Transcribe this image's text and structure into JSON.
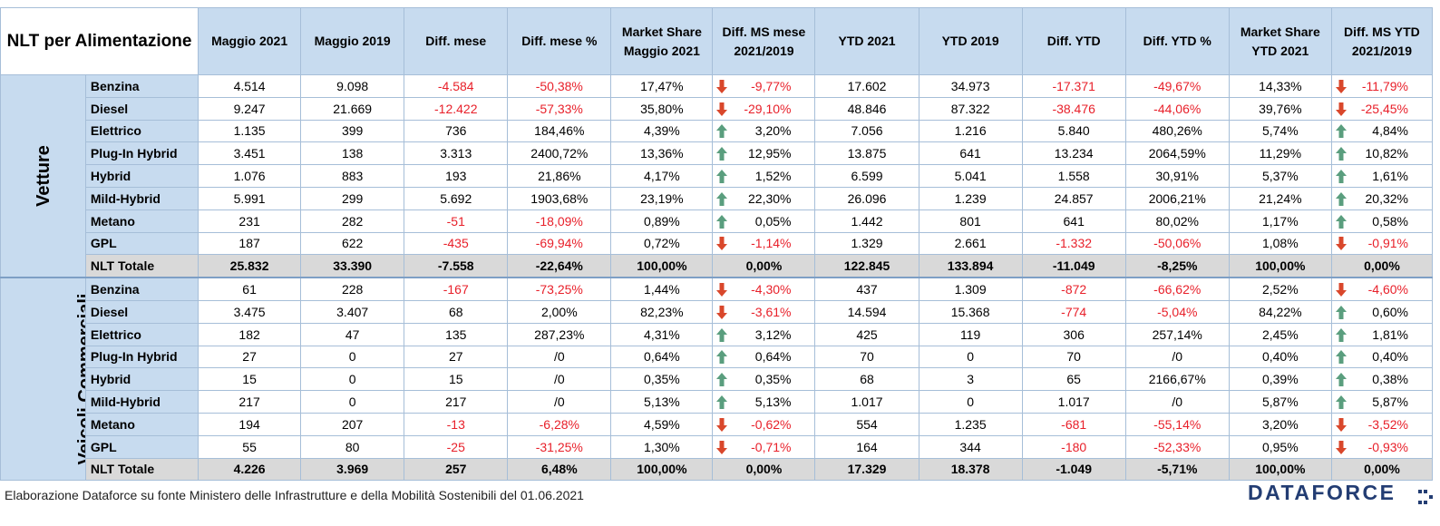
{
  "corner_title": "NLT per Alimentazione",
  "columns": [
    "Maggio 2021",
    "Maggio 2019",
    "Diff. mese",
    "Diff. mese %",
    "Market Share Maggio 2021",
    "Diff. MS mese 2021/2019",
    "YTD 2021",
    "YTD 2019",
    "Diff. YTD",
    "Diff. YTD %",
    "Market Share YTD 2021",
    "Diff. MS YTD 2021/2019"
  ],
  "colors": {
    "header_bg": "#c7dbef",
    "negative_text": "#e8202a",
    "up_arrow": "#5a9e7e",
    "down_arrow": "#d9472b",
    "total_row_bg": "#d9d9d9",
    "logo": "#233d73"
  },
  "groups": [
    {
      "name": "Vetture",
      "rows": [
        {
          "label": "Benzina",
          "c1": "4.514",
          "c2": "9.098",
          "c3": "-4.584",
          "c4": "-50,38%",
          "c5": "17,47%",
          "c6": "-9,77%",
          "c6_dir": "down",
          "c7": "17.602",
          "c8": "34.973",
          "c9": "-17.371",
          "c10": "-49,67%",
          "c11": "14,33%",
          "c12": "-11,79%",
          "c12_dir": "down"
        },
        {
          "label": "Diesel",
          "c1": "9.247",
          "c2": "21.669",
          "c3": "-12.422",
          "c4": "-57,33%",
          "c5": "35,80%",
          "c6": "-29,10%",
          "c6_dir": "down",
          "c7": "48.846",
          "c8": "87.322",
          "c9": "-38.476",
          "c10": "-44,06%",
          "c11": "39,76%",
          "c12": "-25,45%",
          "c12_dir": "down"
        },
        {
          "label": "Elettrico",
          "c1": "1.135",
          "c2": "399",
          "c3": "736",
          "c4": "184,46%",
          "c5": "4,39%",
          "c6": "3,20%",
          "c6_dir": "up",
          "c7": "7.056",
          "c8": "1.216",
          "c9": "5.840",
          "c10": "480,26%",
          "c11": "5,74%",
          "c12": "4,84%",
          "c12_dir": "up"
        },
        {
          "label": "Plug-In Hybrid",
          "c1": "3.451",
          "c2": "138",
          "c3": "3.313",
          "c4": "2400,72%",
          "c5": "13,36%",
          "c6": "12,95%",
          "c6_dir": "up",
          "c7": "13.875",
          "c8": "641",
          "c9": "13.234",
          "c10": "2064,59%",
          "c11": "11,29%",
          "c12": "10,82%",
          "c12_dir": "up"
        },
        {
          "label": "Hybrid",
          "c1": "1.076",
          "c2": "883",
          "c3": "193",
          "c4": "21,86%",
          "c5": "4,17%",
          "c6": "1,52%",
          "c6_dir": "up",
          "c7": "6.599",
          "c8": "5.041",
          "c9": "1.558",
          "c10": "30,91%",
          "c11": "5,37%",
          "c12": "1,61%",
          "c12_dir": "up"
        },
        {
          "label": "Mild-Hybrid",
          "c1": "5.991",
          "c2": "299",
          "c3": "5.692",
          "c4": "1903,68%",
          "c5": "23,19%",
          "c6": "22,30%",
          "c6_dir": "up",
          "c7": "26.096",
          "c8": "1.239",
          "c9": "24.857",
          "c10": "2006,21%",
          "c11": "21,24%",
          "c12": "20,32%",
          "c12_dir": "up"
        },
        {
          "label": "Metano",
          "c1": "231",
          "c2": "282",
          "c3": "-51",
          "c4": "-18,09%",
          "c5": "0,89%",
          "c6": "0,05%",
          "c6_dir": "up",
          "c7": "1.442",
          "c8": "801",
          "c9": "641",
          "c10": "80,02%",
          "c11": "1,17%",
          "c12": "0,58%",
          "c12_dir": "up"
        },
        {
          "label": "GPL",
          "c1": "187",
          "c2": "622",
          "c3": "-435",
          "c4": "-69,94%",
          "c5": "0,72%",
          "c6": "-1,14%",
          "c6_dir": "down",
          "c7": "1.329",
          "c8": "2.661",
          "c9": "-1.332",
          "c10": "-50,06%",
          "c11": "1,08%",
          "c12": "-0,91%",
          "c12_dir": "down"
        },
        {
          "label": "NLT Totale",
          "total": true,
          "c1": "25.832",
          "c2": "33.390",
          "c3": "-7.558",
          "c4": "-22,64%",
          "c5": "100,00%",
          "c6": "0,00%",
          "c6_dir": "",
          "c7": "122.845",
          "c8": "133.894",
          "c9": "-11.049",
          "c10": "-8,25%",
          "c11": "100,00%",
          "c12": "0,00%",
          "c12_dir": ""
        }
      ]
    },
    {
      "name": "Veicoli Commerciali Leggeri",
      "rows": [
        {
          "label": "Benzina",
          "c1": "61",
          "c2": "228",
          "c3": "-167",
          "c4": "-73,25%",
          "c5": "1,44%",
          "c6": "-4,30%",
          "c6_dir": "down",
          "c7": "437",
          "c8": "1.309",
          "c9": "-872",
          "c10": "-66,62%",
          "c11": "2,52%",
          "c12": "-4,60%",
          "c12_dir": "down"
        },
        {
          "label": "Diesel",
          "c1": "3.475",
          "c2": "3.407",
          "c3": "68",
          "c4": "2,00%",
          "c5": "82,23%",
          "c6": "-3,61%",
          "c6_dir": "down",
          "c7": "14.594",
          "c8": "15.368",
          "c9": "-774",
          "c10": "-5,04%",
          "c11": "84,22%",
          "c12": "0,60%",
          "c12_dir": "up"
        },
        {
          "label": "Elettrico",
          "c1": "182",
          "c2": "47",
          "c3": "135",
          "c4": "287,23%",
          "c5": "4,31%",
          "c6": "3,12%",
          "c6_dir": "up",
          "c7": "425",
          "c8": "119",
          "c9": "306",
          "c10": "257,14%",
          "c11": "2,45%",
          "c12": "1,81%",
          "c12_dir": "up"
        },
        {
          "label": "Plug-In Hybrid",
          "c1": "27",
          "c2": "0",
          "c3": "27",
          "c4": "/0",
          "c5": "0,64%",
          "c6": "0,64%",
          "c6_dir": "up",
          "c7": "70",
          "c8": "0",
          "c9": "70",
          "c10": "/0",
          "c11": "0,40%",
          "c12": "0,40%",
          "c12_dir": "up"
        },
        {
          "label": "Hybrid",
          "c1": "15",
          "c2": "0",
          "c3": "15",
          "c4": "/0",
          "c5": "0,35%",
          "c6": "0,35%",
          "c6_dir": "up",
          "c7": "68",
          "c8": "3",
          "c9": "65",
          "c10": "2166,67%",
          "c11": "0,39%",
          "c12": "0,38%",
          "c12_dir": "up"
        },
        {
          "label": "Mild-Hybrid",
          "c1": "217",
          "c2": "0",
          "c3": "217",
          "c4": "/0",
          "c5": "5,13%",
          "c6": "5,13%",
          "c6_dir": "up",
          "c7": "1.017",
          "c8": "0",
          "c9": "1.017",
          "c10": "/0",
          "c11": "5,87%",
          "c12": "5,87%",
          "c12_dir": "up"
        },
        {
          "label": "Metano",
          "c1": "194",
          "c2": "207",
          "c3": "-13",
          "c4": "-6,28%",
          "c5": "4,59%",
          "c6": "-0,62%",
          "c6_dir": "down",
          "c7": "554",
          "c8": "1.235",
          "c9": "-681",
          "c10": "-55,14%",
          "c11": "3,20%",
          "c12": "-3,52%",
          "c12_dir": "down"
        },
        {
          "label": "GPL",
          "c1": "55",
          "c2": "80",
          "c3": "-25",
          "c4": "-31,25%",
          "c5": "1,30%",
          "c6": "-0,71%",
          "c6_dir": "down",
          "c7": "164",
          "c8": "344",
          "c9": "-180",
          "c10": "-52,33%",
          "c11": "0,95%",
          "c12": "-0,93%",
          "c12_dir": "down"
        },
        {
          "label": "NLT Totale",
          "total": true,
          "c1": "4.226",
          "c2": "3.969",
          "c3": "257",
          "c4": "6,48%",
          "c5": "100,00%",
          "c6": "0,00%",
          "c6_dir": "",
          "c7": "17.329",
          "c8": "18.378",
          "c9": "-1.049",
          "c10": "-5,71%",
          "c11": "100,00%",
          "c12": "0,00%",
          "c12_dir": ""
        }
      ]
    }
  ],
  "footer": "Elaborazione Dataforce su fonte Ministero delle Infrastrutture e della Mobilità Sostenibili del 01.06.2021",
  "logo_text": "DATAFORCE"
}
